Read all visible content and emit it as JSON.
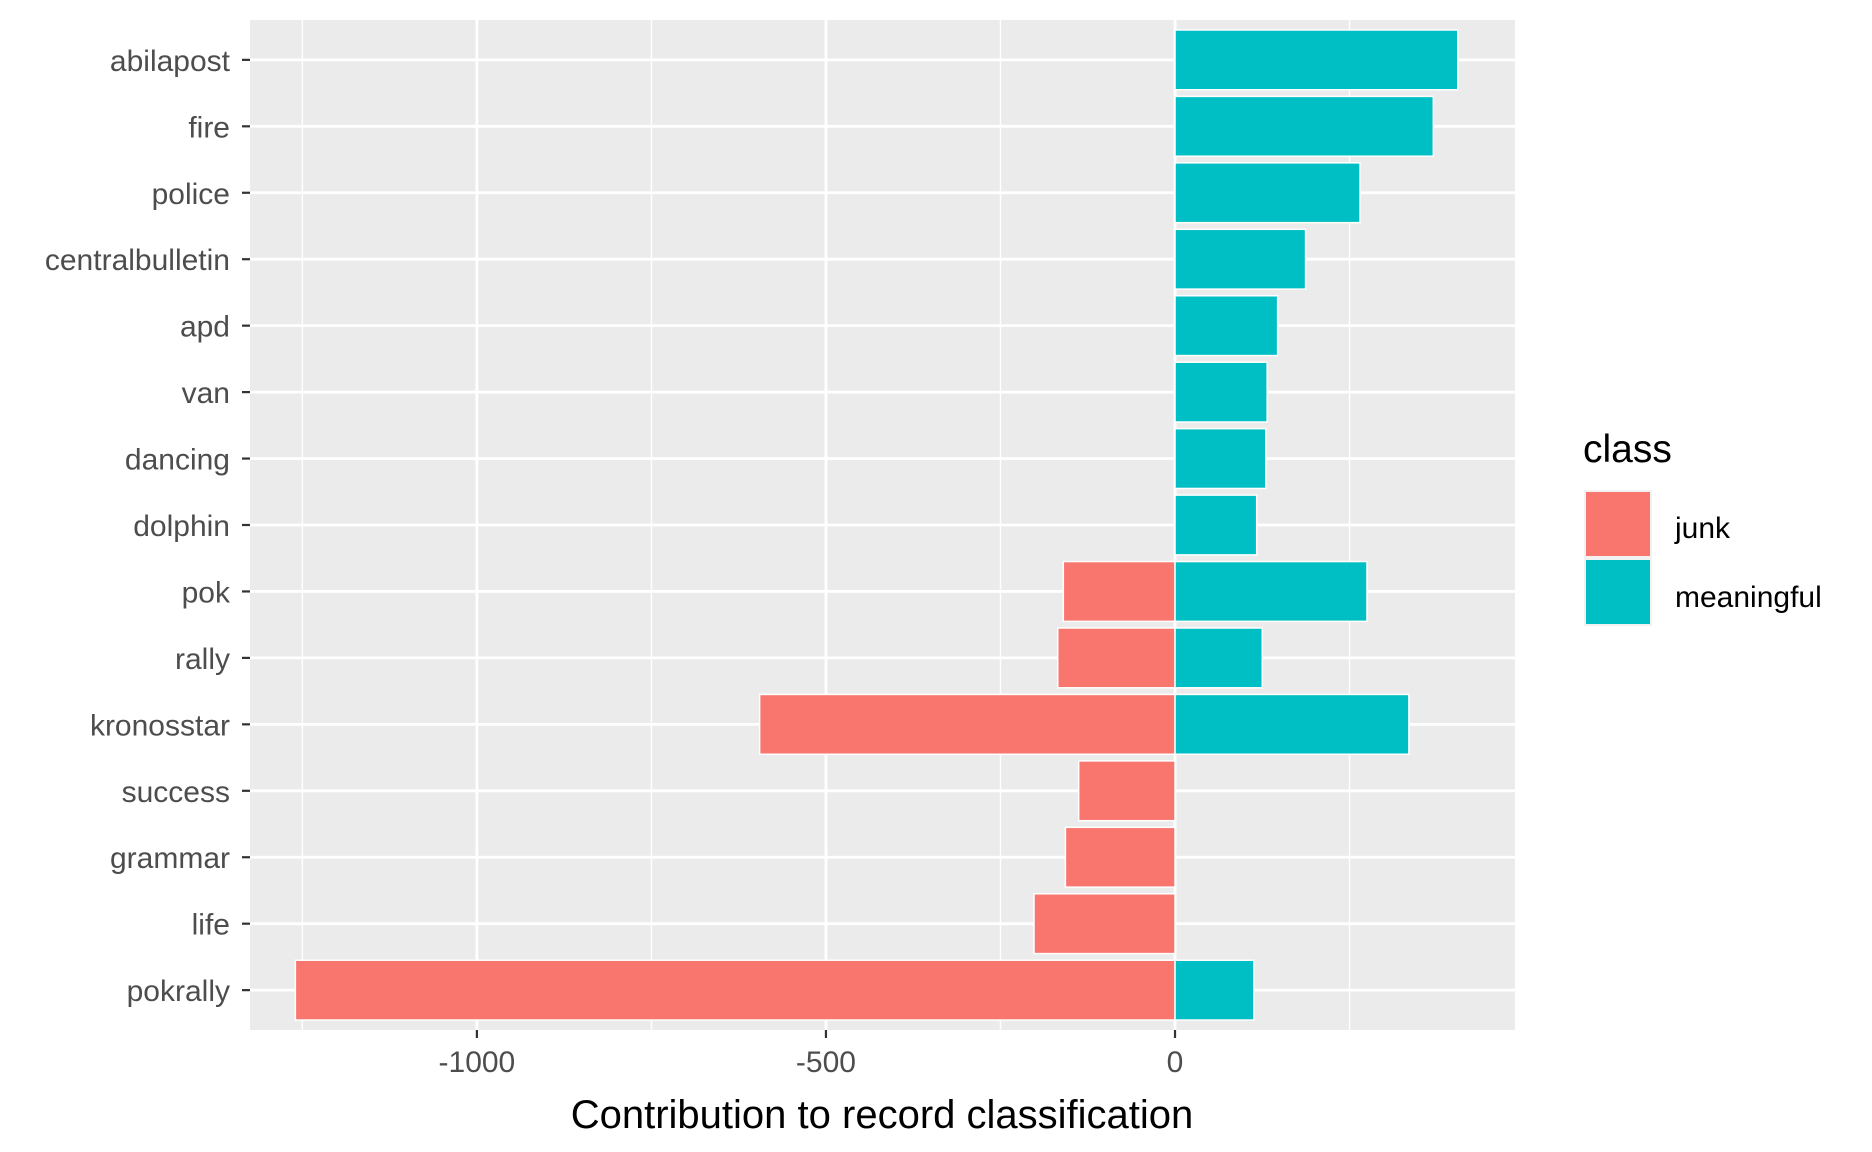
{
  "chart_data": {
    "type": "bar",
    "orientation": "horizontal",
    "stacked": true,
    "categories": [
      "abilapost",
      "fire",
      "police",
      "centralbulletin",
      "apd",
      "van",
      "dancing",
      "dolphin",
      "pok",
      "rally",
      "kronosstar",
      "success",
      "grammar",
      "life",
      "pokrally"
    ],
    "series": [
      {
        "name": "junk",
        "color": "#F8766D",
        "values": [
          0,
          0,
          0,
          0,
          0,
          0,
          0,
          0,
          -160,
          -168,
          -595,
          -138,
          -157,
          -202,
          -1260
        ]
      },
      {
        "name": "meaningful",
        "color": "#00BFC4",
        "values": [
          405,
          370,
          265,
          187,
          147,
          132,
          130,
          117,
          275,
          125,
          335,
          0,
          0,
          0,
          113
        ]
      }
    ],
    "xlabel": "Contribution to record classification",
    "ylabel": "",
    "xlim": [
      -1325,
      487
    ],
    "xticks": [
      -1000,
      -500,
      0
    ],
    "xtick_labels": [
      "-1000",
      "-500",
      "0"
    ],
    "grid": true,
    "legend": {
      "title": "class",
      "position": "right"
    }
  }
}
